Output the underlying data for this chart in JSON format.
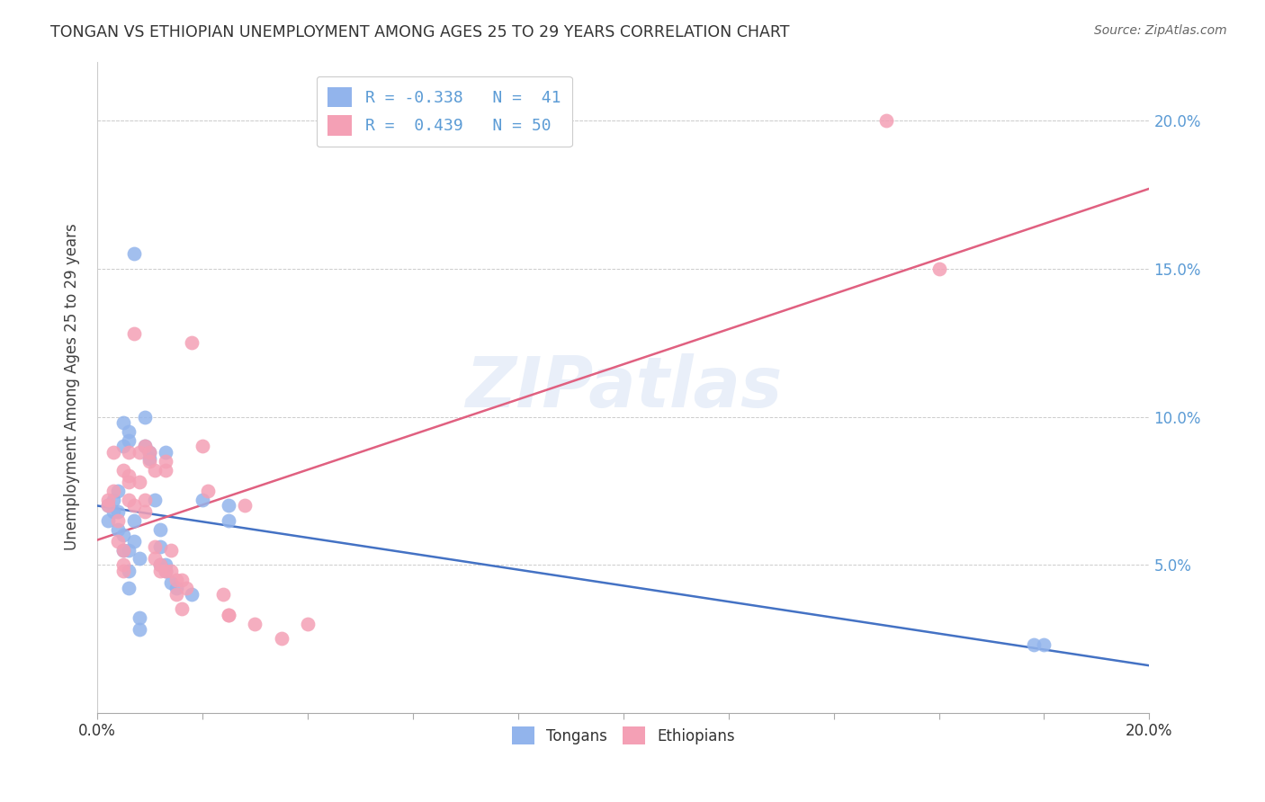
{
  "title": "TONGAN VS ETHIOPIAN UNEMPLOYMENT AMONG AGES 25 TO 29 YEARS CORRELATION CHART",
  "source": "Source: ZipAtlas.com",
  "ylabel": "Unemployment Among Ages 25 to 29 years",
  "xlim": [
    0.0,
    0.2
  ],
  "ylim": [
    0.0,
    0.22
  ],
  "watermark": "ZIPatlas",
  "tongan_color": "#92b4ec",
  "ethiopian_color": "#f4a0b5",
  "line_tongan_color": "#4472c4",
  "line_ethiopian_color": "#e06080",
  "background_color": "#ffffff",
  "grid_color": "#cccccc",
  "title_color": "#333333",
  "axis_label_color": "#404040",
  "right_axis_color": "#5b9bd5",
  "source_color": "#666666",
  "tongan_points": [
    [
      0.002,
      0.07
    ],
    [
      0.002,
      0.065
    ],
    [
      0.003,
      0.072
    ],
    [
      0.003,
      0.068
    ],
    [
      0.004,
      0.075
    ],
    [
      0.004,
      0.068
    ],
    [
      0.004,
      0.062
    ],
    [
      0.005,
      0.098
    ],
    [
      0.005,
      0.09
    ],
    [
      0.005,
      0.06
    ],
    [
      0.005,
      0.055
    ],
    [
      0.006,
      0.095
    ],
    [
      0.006,
      0.092
    ],
    [
      0.006,
      0.055
    ],
    [
      0.006,
      0.048
    ],
    [
      0.006,
      0.042
    ],
    [
      0.007,
      0.155
    ],
    [
      0.007,
      0.065
    ],
    [
      0.007,
      0.058
    ],
    [
      0.008,
      0.052
    ],
    [
      0.008,
      0.032
    ],
    [
      0.008,
      0.028
    ],
    [
      0.009,
      0.1
    ],
    [
      0.009,
      0.09
    ],
    [
      0.01,
      0.088
    ],
    [
      0.01,
      0.086
    ],
    [
      0.011,
      0.072
    ],
    [
      0.012,
      0.062
    ],
    [
      0.012,
      0.056
    ],
    [
      0.012,
      0.05
    ],
    [
      0.013,
      0.088
    ],
    [
      0.013,
      0.05
    ],
    [
      0.013,
      0.048
    ],
    [
      0.014,
      0.044
    ],
    [
      0.015,
      0.042
    ],
    [
      0.018,
      0.04
    ],
    [
      0.02,
      0.072
    ],
    [
      0.025,
      0.07
    ],
    [
      0.025,
      0.065
    ],
    [
      0.178,
      0.023
    ],
    [
      0.18,
      0.023
    ]
  ],
  "ethiopian_points": [
    [
      0.002,
      0.072
    ],
    [
      0.002,
      0.07
    ],
    [
      0.003,
      0.088
    ],
    [
      0.003,
      0.075
    ],
    [
      0.004,
      0.065
    ],
    [
      0.004,
      0.058
    ],
    [
      0.005,
      0.055
    ],
    [
      0.005,
      0.05
    ],
    [
      0.005,
      0.048
    ],
    [
      0.005,
      0.082
    ],
    [
      0.006,
      0.078
    ],
    [
      0.006,
      0.088
    ],
    [
      0.006,
      0.08
    ],
    [
      0.006,
      0.072
    ],
    [
      0.007,
      0.07
    ],
    [
      0.007,
      0.128
    ],
    [
      0.008,
      0.088
    ],
    [
      0.008,
      0.078
    ],
    [
      0.009,
      0.072
    ],
    [
      0.009,
      0.068
    ],
    [
      0.009,
      0.09
    ],
    [
      0.01,
      0.088
    ],
    [
      0.01,
      0.085
    ],
    [
      0.011,
      0.082
    ],
    [
      0.011,
      0.056
    ],
    [
      0.011,
      0.052
    ],
    [
      0.012,
      0.05
    ],
    [
      0.012,
      0.048
    ],
    [
      0.013,
      0.048
    ],
    [
      0.013,
      0.085
    ],
    [
      0.013,
      0.082
    ],
    [
      0.014,
      0.055
    ],
    [
      0.014,
      0.048
    ],
    [
      0.015,
      0.045
    ],
    [
      0.015,
      0.04
    ],
    [
      0.016,
      0.035
    ],
    [
      0.016,
      0.045
    ],
    [
      0.017,
      0.042
    ],
    [
      0.018,
      0.125
    ],
    [
      0.02,
      0.09
    ],
    [
      0.021,
      0.075
    ],
    [
      0.024,
      0.04
    ],
    [
      0.025,
      0.033
    ],
    [
      0.025,
      0.033
    ],
    [
      0.028,
      0.07
    ],
    [
      0.03,
      0.03
    ],
    [
      0.035,
      0.025
    ],
    [
      0.04,
      0.03
    ],
    [
      0.15,
      0.2
    ],
    [
      0.16,
      0.15
    ]
  ]
}
